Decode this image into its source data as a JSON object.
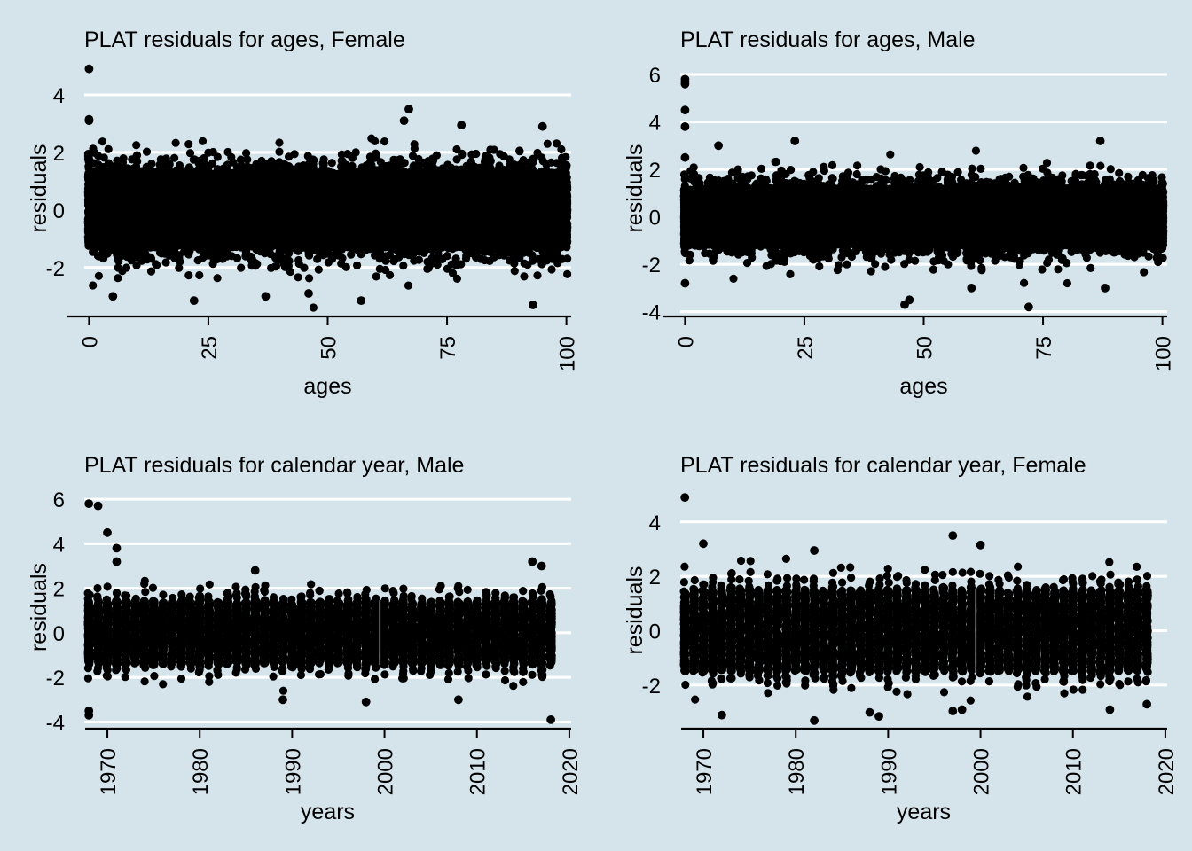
{
  "chart_data": [
    {
      "type": "scatter",
      "title": "PLAT residuals for ages, Female",
      "xlabel": "ages",
      "ylabel": "residuals",
      "xlim": [
        -1,
        101
      ],
      "ylim": [
        -3.7,
        5.2
      ],
      "xticks": [
        0,
        25,
        50,
        75,
        100
      ],
      "xtick_labels": [
        "0",
        "25",
        "50",
        "75",
        "100"
      ],
      "yticks": [
        -2,
        0,
        2,
        4
      ],
      "ytick_labels": [
        "-2",
        "0",
        "2",
        "4"
      ],
      "grid": "horizontal white lines",
      "legend": "none",
      "background": "#d5e4eb",
      "point_color": "#000000",
      "x_domain": [
        0,
        100
      ],
      "x_integer": true,
      "bulk_band": [
        -1.3,
        1.3
      ],
      "noise_sd": 0.75,
      "points_per_x": 200,
      "outliers": [
        [
          0,
          4.9
        ],
        [
          0,
          3.15
        ],
        [
          0,
          3.1
        ],
        [
          5,
          -3.0
        ],
        [
          22,
          -3.15
        ],
        [
          37,
          -3.0
        ],
        [
          57,
          -3.15
        ],
        [
          67,
          3.5
        ],
        [
          66,
          3.1
        ],
        [
          93,
          -3.3
        ],
        [
          46,
          -2.9
        ],
        [
          78,
          2.95
        ],
        [
          95,
          2.9
        ]
      ]
    },
    {
      "type": "scatter",
      "title": "PLAT residuals for ages, Male",
      "xlabel": "ages",
      "ylabel": "residuals",
      "xlim": [
        -1,
        101
      ],
      "ylim": [
        -4.2,
        6.6
      ],
      "xticks": [
        0,
        25,
        50,
        75,
        100
      ],
      "xtick_labels": [
        "0",
        "25",
        "50",
        "75",
        "100"
      ],
      "yticks": [
        -4,
        -2,
        0,
        2,
        4,
        6
      ],
      "ytick_labels": [
        "-4",
        "-2",
        "0",
        "2",
        "4",
        "6"
      ],
      "grid": "horizontal white lines",
      "legend": "none",
      "background": "#d5e4eb",
      "point_color": "#000000",
      "x_domain": [
        0,
        100
      ],
      "x_integer": true,
      "bulk_band": [
        -1.2,
        1.2
      ],
      "noise_sd": 0.7,
      "points_per_x": 200,
      "outliers": [
        [
          0,
          5.8
        ],
        [
          0,
          5.7
        ],
        [
          0,
          5.6
        ],
        [
          0,
          4.5
        ],
        [
          0,
          3.8
        ],
        [
          0,
          2.5
        ],
        [
          0,
          -2.8
        ],
        [
          23,
          3.2
        ],
        [
          46,
          -3.7
        ],
        [
          47,
          -3.5
        ],
        [
          72,
          -3.8
        ],
        [
          87,
          3.2
        ],
        [
          88,
          -3.0
        ],
        [
          7,
          3.0
        ],
        [
          60,
          -3.0
        ]
      ]
    },
    {
      "type": "scatter",
      "title": "PLAT residuals for calendar year, Male",
      "xlabel": "years",
      "ylabel": "residuals",
      "xlim": [
        1967.5,
        2020.2
      ],
      "ylim": [
        -4.3,
        6.6
      ],
      "xticks": [
        1970,
        1980,
        1990,
        2000,
        2010,
        2020
      ],
      "xtick_labels": [
        "1970",
        "1980",
        "1990",
        "2000",
        "2010",
        "2020"
      ],
      "yticks": [
        -4,
        -2,
        0,
        2,
        4,
        6
      ],
      "ytick_labels": [
        "-4",
        "-2",
        "0",
        "2",
        "4",
        "6"
      ],
      "grid": "horizontal white lines",
      "legend": "none",
      "background": "#d5e4eb",
      "point_color": "#000000",
      "x_domain": [
        1968,
        2018
      ],
      "x_integer": true,
      "bulk_band": [
        -1.4,
        1.4
      ],
      "noise_sd": 0.75,
      "points_per_x": 200,
      "gap_after": 1999,
      "outliers": [
        [
          1968,
          5.8
        ],
        [
          1969,
          5.7
        ],
        [
          1970,
          4.5
        ],
        [
          1971,
          3.8
        ],
        [
          1971,
          3.2
        ],
        [
          1968,
          -3.5
        ],
        [
          1968,
          -3.7
        ],
        [
          1998,
          -3.1
        ],
        [
          2018,
          -3.9
        ],
        [
          2016,
          3.2
        ],
        [
          2017,
          3.0
        ],
        [
          1986,
          2.8
        ],
        [
          1989,
          -3.0
        ],
        [
          2008,
          -3.0
        ]
      ]
    },
    {
      "type": "scatter",
      "title": "PLAT residuals for calendar year, Female",
      "xlabel": "years",
      "ylabel": "residuals",
      "xlim": [
        1967.5,
        2020.2
      ],
      "ylim": [
        -3.6,
        5.1
      ],
      "xticks": [
        1970,
        1980,
        1990,
        2000,
        2010,
        2020
      ],
      "xtick_labels": [
        "1970",
        "1980",
        "1990",
        "2000",
        "2010",
        "2020"
      ],
      "yticks": [
        -2,
        0,
        2,
        4
      ],
      "ytick_labels": [
        "-2",
        "0",
        "2",
        "4"
      ],
      "grid": "horizontal white lines",
      "legend": "none",
      "background": "#d5e4eb",
      "point_color": "#000000",
      "x_domain": [
        1968,
        2018
      ],
      "x_integer": true,
      "bulk_band": [
        -1.5,
        1.5
      ],
      "noise_sd": 0.78,
      "points_per_x": 200,
      "gap_after": 1999,
      "outliers": [
        [
          1968,
          4.9
        ],
        [
          1997,
          3.5
        ],
        [
          2000,
          3.15
        ],
        [
          1970,
          3.2
        ],
        [
          1972,
          -3.1
        ],
        [
          1982,
          -3.3
        ],
        [
          1989,
          -3.15
        ],
        [
          1988,
          -3.0
        ],
        [
          1997,
          -2.95
        ],
        [
          1998,
          -2.9
        ],
        [
          2014,
          -2.9
        ],
        [
          2018,
          -2.7
        ],
        [
          1982,
          2.95
        ]
      ]
    }
  ]
}
